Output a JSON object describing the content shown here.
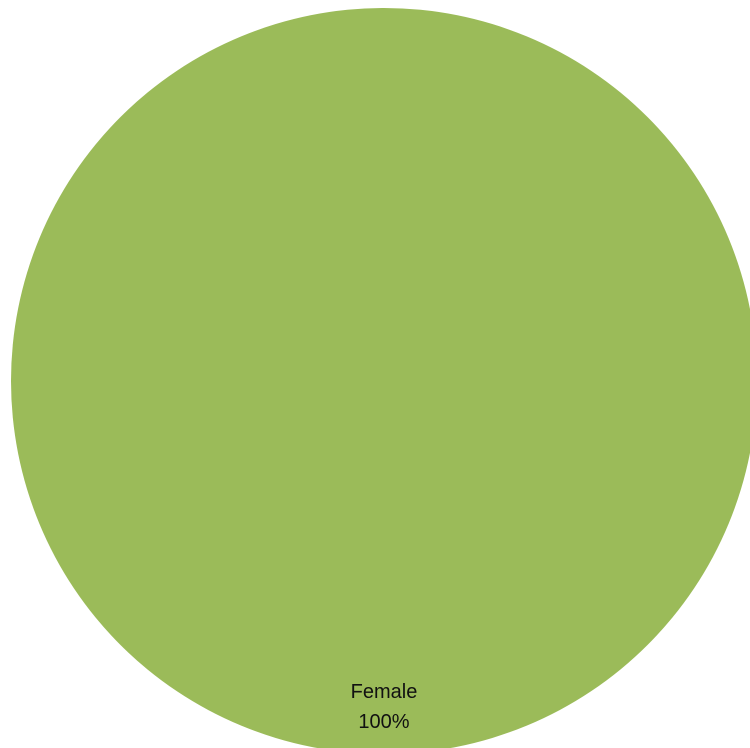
{
  "chart_data": {
    "type": "pie",
    "slices": [
      {
        "label": "Female",
        "value": 100,
        "percent_label": "100%",
        "color": "#9BBB59"
      }
    ],
    "title": "",
    "legend": "none"
  }
}
